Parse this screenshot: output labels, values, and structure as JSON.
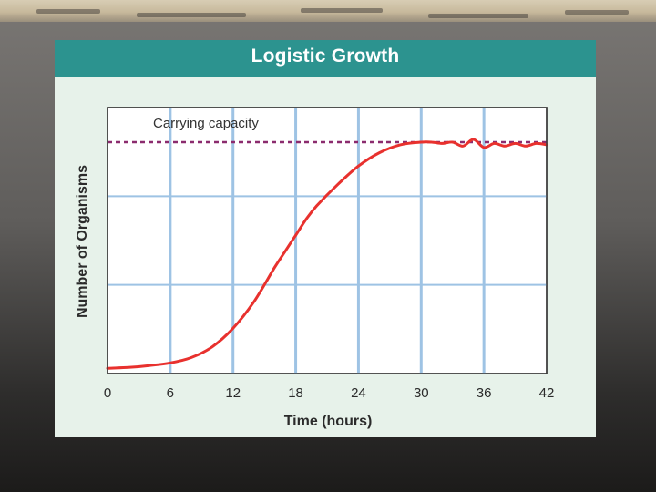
{
  "chart_data": {
    "type": "line",
    "title": "Logistic Growth",
    "xlabel": "Time (hours)",
    "ylabel": "Number of Organisms",
    "xlim": [
      0,
      42
    ],
    "ylim": [
      0,
      1
    ],
    "x_ticks": [
      "0",
      "6",
      "12",
      "18",
      "24",
      "30",
      "36",
      "42"
    ],
    "grid": true,
    "annotations": [
      {
        "text": "Carrying capacity",
        "y": 0.87
      }
    ],
    "series": [
      {
        "x": [
          0,
          2,
          4,
          6,
          8,
          10,
          12,
          14,
          16,
          17,
          18,
          19,
          20,
          22,
          24,
          26,
          28,
          30,
          31,
          32,
          33,
          34,
          35,
          36,
          37,
          38,
          39,
          40,
          41,
          42
        ],
        "values": [
          0.02,
          0.023,
          0.03,
          0.04,
          0.06,
          0.1,
          0.17,
          0.27,
          0.4,
          0.46,
          0.52,
          0.58,
          0.63,
          0.71,
          0.78,
          0.83,
          0.86,
          0.87,
          0.87,
          0.865,
          0.87,
          0.855,
          0.88,
          0.85,
          0.865,
          0.855,
          0.865,
          0.855,
          0.865,
          0.86
        ]
      }
    ],
    "colors": {
      "line": "#e8312e",
      "capacity": "#8b2b6e",
      "grid_major": "#9ec3e4",
      "grid_minor": "#c9def1",
      "plot_bg": "#ffffff",
      "header": "#2c938f"
    }
  }
}
